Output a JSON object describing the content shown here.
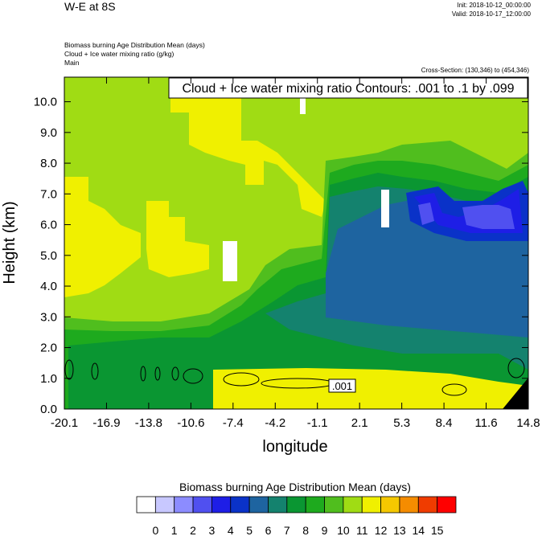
{
  "header": {
    "title": "W-E at 8S",
    "init": "Init: 2018-10-12_00:00:00",
    "valid": "Valid: 2018-10-17_12:00:00",
    "fields": [
      "Biomass burning Age Distribution Mean   (days)",
      "Cloud + Ice water mixing ratio   (g/kg)",
      "Main"
    ],
    "cross_section": "Cross-Section: (130,346) to (454,346)"
  },
  "chart_data": {
    "type": "heatmap",
    "contour_title": "Cloud + Ice water mixing ratio Contours: .001 to .1 by .099",
    "contour_label": ".001",
    "xlabel": "longitude",
    "ylabel": "Height (km)",
    "xlim": [
      -20.1,
      14.8
    ],
    "ylim": [
      0,
      10.8
    ],
    "x_ticks": [
      "-20.1",
      "-16.9",
      "-13.8",
      "-10.6",
      "-7.4",
      "-4.2",
      "-1.1",
      "2.1",
      "5.3",
      "8.4",
      "11.6",
      "14.8"
    ],
    "y_ticks": [
      "0.0",
      "1.0",
      "2.0",
      "3.0",
      "4.0",
      "5.0",
      "6.0",
      "7.0",
      "8.0",
      "9.0",
      "10.0"
    ],
    "colorbar": {
      "title": "Biomass burning Age Distribution Mean  (days)",
      "labels": [
        "0",
        "1",
        "2",
        "3",
        "4",
        "5",
        "6",
        "7",
        "8",
        "9",
        "10",
        "11",
        "12",
        "13",
        "14",
        "15"
      ],
      "colors": [
        "#ffffff",
        "#c8c8ff",
        "#8c8cff",
        "#5050f0",
        "#1e1ee6",
        "#0a32c8",
        "#1e64a0",
        "#14826e",
        "#0a9632",
        "#1eaa1e",
        "#50be1e",
        "#a0dc14",
        "#f0f000",
        "#f5c800",
        "#f58c00",
        "#f03c00",
        "#ff0000"
      ]
    }
  }
}
